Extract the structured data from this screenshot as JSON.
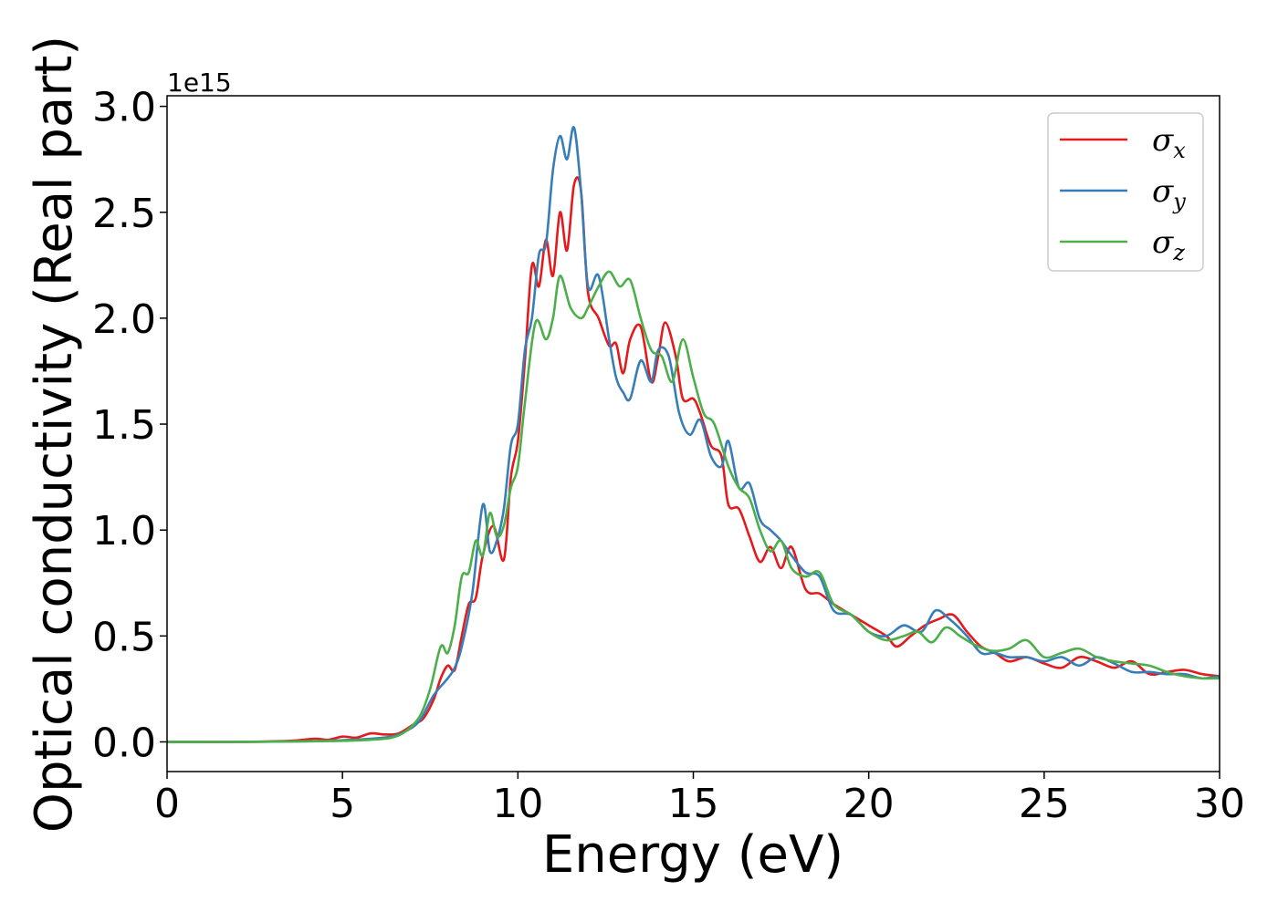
{
  "chart_data": {
    "type": "line",
    "xlabel": "Energy (eV)",
    "ylabel": "Optical conductivity (Real part)",
    "y_offset_label": "1e15",
    "xlim": [
      0,
      30
    ],
    "ylim": [
      -0.14,
      3.05
    ],
    "x_ticks": [
      0,
      5,
      10,
      15,
      20,
      25,
      30
    ],
    "x_tick_labels": [
      "0",
      "5",
      "10",
      "15",
      "20",
      "25",
      "30"
    ],
    "y_ticks": [
      0.0,
      0.5,
      1.0,
      1.5,
      2.0,
      2.5,
      3.0
    ],
    "y_tick_labels": [
      "0.0",
      "0.5",
      "1.0",
      "1.5",
      "2.0",
      "2.5",
      "3.0"
    ],
    "grid": false,
    "legend_position": "top-right",
    "series": [
      {
        "name": "σx",
        "symbol": "σ",
        "subscript": "x",
        "color": "#e41a1c",
        "x": [
          0,
          2,
          3.5,
          4.2,
          4.6,
          5.0,
          5.4,
          5.8,
          6.2,
          6.6,
          7.0,
          7.3,
          7.6,
          7.8,
          8.0,
          8.2,
          8.4,
          8.6,
          8.8,
          9.0,
          9.3,
          9.6,
          9.8,
          10.0,
          10.2,
          10.4,
          10.6,
          10.8,
          11.0,
          11.2,
          11.4,
          11.6,
          11.8,
          12.0,
          12.3,
          12.6,
          12.8,
          13.0,
          13.2,
          13.5,
          13.8,
          14.0,
          14.2,
          14.5,
          14.7,
          15.0,
          15.2,
          15.5,
          15.8,
          16.0,
          16.3,
          16.6,
          16.9,
          17.2,
          17.5,
          17.8,
          18.2,
          18.6,
          19.0,
          19.5,
          20.0,
          20.5,
          20.8,
          21.2,
          21.6,
          22.0,
          22.4,
          22.8,
          23.2,
          23.6,
          24.0,
          24.5,
          25.0,
          25.5,
          26.0,
          26.5,
          27.0,
          27.5,
          28.0,
          28.5,
          29.0,
          29.5,
          30.0
        ],
        "y": [
          0,
          0.0,
          0.005,
          0.015,
          0.01,
          0.025,
          0.02,
          0.04,
          0.035,
          0.04,
          0.08,
          0.11,
          0.2,
          0.3,
          0.36,
          0.34,
          0.5,
          0.65,
          0.68,
          0.88,
          1.02,
          0.86,
          1.25,
          1.42,
          1.8,
          2.25,
          2.15,
          2.37,
          2.2,
          2.5,
          2.32,
          2.63,
          2.6,
          2.12,
          2.0,
          1.87,
          1.88,
          1.74,
          1.9,
          1.96,
          1.7,
          1.82,
          1.98,
          1.82,
          1.62,
          1.62,
          1.55,
          1.4,
          1.35,
          1.12,
          1.1,
          0.97,
          0.85,
          0.92,
          0.82,
          0.92,
          0.72,
          0.7,
          0.65,
          0.6,
          0.55,
          0.5,
          0.45,
          0.5,
          0.55,
          0.58,
          0.6,
          0.52,
          0.45,
          0.42,
          0.38,
          0.4,
          0.37,
          0.35,
          0.4,
          0.38,
          0.35,
          0.38,
          0.32,
          0.33,
          0.34,
          0.32,
          0.31
        ]
      },
      {
        "name": "σy",
        "symbol": "σ",
        "subscript": "y",
        "color": "#377eb8",
        "x": [
          0,
          2,
          4,
          5.0,
          5.8,
          6.4,
          6.8,
          7.2,
          7.6,
          8.0,
          8.2,
          8.4,
          8.7,
          9.0,
          9.2,
          9.4,
          9.6,
          9.8,
          10.0,
          10.2,
          10.4,
          10.6,
          10.8,
          11.0,
          11.2,
          11.4,
          11.6,
          11.8,
          12.0,
          12.3,
          12.6,
          12.8,
          13.0,
          13.2,
          13.5,
          13.8,
          14.0,
          14.3,
          14.6,
          14.9,
          15.2,
          15.5,
          15.8,
          16.0,
          16.3,
          16.6,
          16.9,
          17.2,
          17.5,
          17.8,
          18.2,
          18.6,
          19.0,
          19.5,
          20.0,
          20.5,
          21.0,
          21.5,
          21.9,
          22.3,
          22.8,
          23.2,
          23.6,
          24.0,
          24.5,
          25.0,
          25.5,
          26.0,
          26.5,
          27.0,
          27.5,
          28.0,
          28.5,
          29.0,
          29.5,
          30.0
        ],
        "y": [
          0,
          0.0,
          0.003,
          0.008,
          0.015,
          0.025,
          0.05,
          0.1,
          0.22,
          0.3,
          0.35,
          0.45,
          0.7,
          1.12,
          0.9,
          0.95,
          1.1,
          1.4,
          1.5,
          1.85,
          2.0,
          2.3,
          2.35,
          2.7,
          2.86,
          2.75,
          2.9,
          2.6,
          2.15,
          2.2,
          1.9,
          1.72,
          1.65,
          1.62,
          1.8,
          1.7,
          1.85,
          1.82,
          1.55,
          1.45,
          1.52,
          1.35,
          1.3,
          1.42,
          1.2,
          1.22,
          1.05,
          1.0,
          0.95,
          0.88,
          0.8,
          0.78,
          0.62,
          0.6,
          0.52,
          0.5,
          0.55,
          0.52,
          0.62,
          0.58,
          0.5,
          0.42,
          0.42,
          0.4,
          0.4,
          0.38,
          0.4,
          0.36,
          0.4,
          0.37,
          0.33,
          0.33,
          0.32,
          0.32,
          0.3,
          0.31
        ]
      },
      {
        "name": "σz",
        "symbol": "σ",
        "subscript": "z",
        "color": "#4daf4a",
        "x": [
          0,
          2,
          4,
          5.0,
          5.8,
          6.4,
          6.8,
          7.2,
          7.5,
          7.8,
          8.0,
          8.2,
          8.4,
          8.6,
          8.8,
          9.0,
          9.2,
          9.4,
          9.6,
          9.8,
          10.0,
          10.2,
          10.5,
          10.8,
          11.0,
          11.2,
          11.5,
          11.8,
          12.0,
          12.3,
          12.6,
          12.9,
          13.2,
          13.5,
          13.8,
          14.1,
          14.4,
          14.7,
          15.0,
          15.3,
          15.6,
          16.0,
          16.3,
          16.6,
          16.9,
          17.2,
          17.5,
          17.8,
          18.2,
          18.6,
          19.0,
          19.5,
          20.0,
          20.5,
          21.0,
          21.4,
          21.8,
          22.2,
          22.6,
          23.0,
          23.5,
          24.0,
          24.5,
          25.0,
          25.5,
          26.0,
          26.5,
          27.0,
          27.5,
          28.0,
          28.5,
          29.0,
          29.5,
          30.0
        ],
        "y": [
          0,
          0.0,
          0.003,
          0.005,
          0.01,
          0.02,
          0.05,
          0.12,
          0.25,
          0.45,
          0.42,
          0.55,
          0.78,
          0.8,
          0.95,
          0.88,
          1.08,
          0.97,
          1.02,
          1.2,
          1.3,
          1.6,
          1.98,
          1.9,
          2.0,
          2.2,
          2.05,
          2.0,
          2.05,
          2.15,
          2.22,
          2.15,
          2.18,
          2.0,
          1.85,
          1.82,
          1.7,
          1.9,
          1.72,
          1.55,
          1.5,
          1.3,
          1.2,
          1.15,
          1.0,
          0.9,
          0.95,
          0.82,
          0.78,
          0.8,
          0.65,
          0.6,
          0.52,
          0.48,
          0.5,
          0.52,
          0.47,
          0.54,
          0.5,
          0.46,
          0.43,
          0.44,
          0.48,
          0.4,
          0.42,
          0.44,
          0.4,
          0.38,
          0.37,
          0.36,
          0.33,
          0.31,
          0.3,
          0.3
        ]
      }
    ]
  }
}
